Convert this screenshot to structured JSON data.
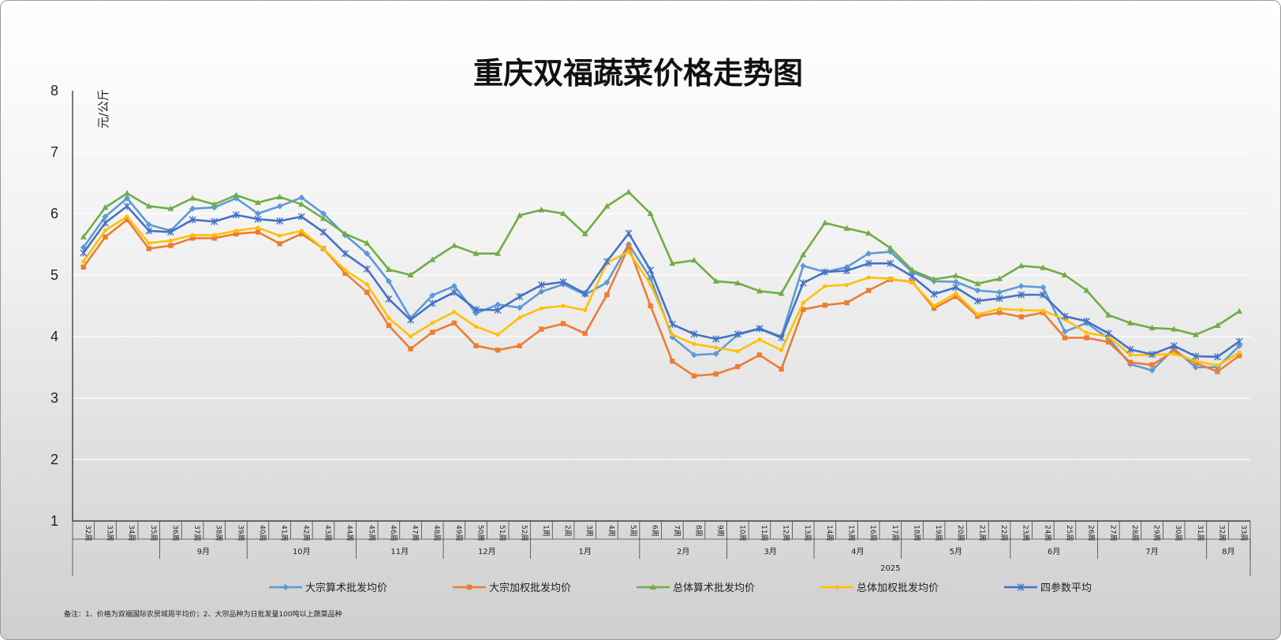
{
  "chart_data": {
    "type": "line",
    "title": "重庆双福蔬菜价格走势图",
    "ylabel": "元/公斤",
    "ylim": [
      1,
      8
    ],
    "yticks": [
      "1",
      "2",
      "3",
      "4",
      "5",
      "6",
      "7",
      "8"
    ],
    "grid": true,
    "legend_position": "bottom",
    "categories": [
      "32周",
      "33周",
      "34周",
      "35周",
      "36周",
      "37周",
      "38周",
      "39周",
      "40周",
      "41周",
      "42周",
      "43周",
      "44周",
      "45周",
      "46周",
      "47周",
      "48周",
      "49周",
      "50周",
      "51周",
      "52周",
      "1周",
      "2周",
      "3周",
      "4周",
      "5周",
      "6周",
      "7周",
      "8周",
      "9周",
      "10周",
      "11周",
      "12周",
      "13周",
      "14周",
      "15周",
      "16周",
      "17周",
      "18周",
      "19周",
      "20周",
      "21周",
      "22周",
      "23周",
      "24周",
      "25周",
      "26周",
      "27周",
      "28周",
      "29周",
      "30周",
      "31周",
      "32周",
      "33周"
    ],
    "month_groups": [
      {
        "label": "",
        "span": 4
      },
      {
        "label": "9月",
        "span": 4
      },
      {
        "label": "10月",
        "span": 5
      },
      {
        "label": "11月",
        "span": 4
      },
      {
        "label": "12月",
        "span": 4
      },
      {
        "label": "1月",
        "span": 5
      },
      {
        "label": "2月",
        "span": 4
      },
      {
        "label": "3月",
        "span": 4
      },
      {
        "label": "4月",
        "span": 4
      },
      {
        "label": "5月",
        "span": 5
      },
      {
        "label": "6月",
        "span": 4
      },
      {
        "label": "7月",
        "span": 5
      },
      {
        "label": "8月",
        "span": 2
      }
    ],
    "year_label": "2025",
    "series": [
      {
        "name": "大宗算术批发均价",
        "color": "#5B9BD5",
        "marker": "diamond",
        "values": [
          5.45,
          5.95,
          6.25,
          5.82,
          5.72,
          6.08,
          6.1,
          6.25,
          6.0,
          6.12,
          6.26,
          6.0,
          5.65,
          5.35,
          4.9,
          4.3,
          4.67,
          4.82,
          4.38,
          4.52,
          4.47,
          4.73,
          4.85,
          4.68,
          4.88,
          5.5,
          4.95,
          3.99,
          3.7,
          3.72,
          4.03,
          4.13,
          4.0,
          5.15,
          5.05,
          5.13,
          5.35,
          5.38,
          5.05,
          4.9,
          4.89,
          4.75,
          4.72,
          4.82,
          4.8,
          4.08,
          4.22,
          3.97,
          3.55,
          3.45,
          3.8,
          3.5,
          3.5,
          3.85
        ]
      },
      {
        "name": "大宗加权批发均价",
        "color": "#ED7D31",
        "marker": "square",
        "values": [
          5.13,
          5.62,
          5.9,
          5.43,
          5.48,
          5.6,
          5.6,
          5.67,
          5.7,
          5.51,
          5.67,
          5.43,
          5.03,
          4.72,
          4.18,
          3.8,
          4.07,
          4.22,
          3.85,
          3.78,
          3.85,
          4.12,
          4.21,
          4.05,
          4.68,
          5.46,
          4.5,
          3.6,
          3.36,
          3.39,
          3.51,
          3.7,
          3.47,
          4.44,
          4.51,
          4.55,
          4.75,
          4.93,
          4.89,
          4.46,
          4.65,
          4.33,
          4.39,
          4.32,
          4.39,
          3.98,
          3.98,
          3.91,
          3.58,
          3.54,
          3.76,
          3.57,
          3.43,
          3.69
        ]
      },
      {
        "name": "总体算术批发均价",
        "color": "#70AD47",
        "marker": "triangle",
        "values": [
          5.62,
          6.1,
          6.33,
          6.12,
          6.08,
          6.25,
          6.15,
          6.3,
          6.18,
          6.27,
          6.15,
          5.92,
          5.67,
          5.52,
          5.09,
          5.0,
          5.25,
          5.48,
          5.35,
          5.35,
          5.97,
          6.06,
          6.0,
          5.67,
          6.12,
          6.35,
          6.0,
          5.19,
          5.24,
          4.9,
          4.87,
          4.74,
          4.7,
          5.33,
          5.85,
          5.76,
          5.68,
          5.44,
          5.08,
          4.93,
          4.99,
          4.86,
          4.94,
          5.15,
          5.12,
          5.0,
          4.75,
          4.35,
          4.22,
          4.14,
          4.12,
          4.03,
          4.18,
          4.41
        ]
      },
      {
        "name": "总体加权批发均价",
        "color": "#FFC000",
        "marker": "circle",
        "values": [
          5.22,
          5.73,
          5.95,
          5.52,
          5.56,
          5.65,
          5.65,
          5.72,
          5.77,
          5.64,
          5.72,
          5.43,
          5.08,
          4.85,
          4.3,
          4.0,
          4.22,
          4.4,
          4.16,
          4.03,
          4.31,
          4.46,
          4.5,
          4.43,
          5.2,
          5.38,
          4.85,
          4.03,
          3.88,
          3.82,
          3.76,
          3.95,
          3.78,
          4.55,
          4.82,
          4.84,
          4.96,
          4.94,
          4.88,
          4.5,
          4.7,
          4.36,
          4.45,
          4.43,
          4.42,
          4.28,
          4.06,
          4.0,
          3.7,
          3.7,
          3.72,
          3.6,
          3.53,
          3.74
        ]
      },
      {
        "name": "四参数平均",
        "color": "#4472C4",
        "marker": "star",
        "values": [
          5.36,
          5.85,
          6.12,
          5.72,
          5.7,
          5.9,
          5.87,
          5.98,
          5.91,
          5.88,
          5.95,
          5.7,
          5.35,
          5.1,
          4.61,
          4.27,
          4.54,
          4.72,
          4.44,
          4.43,
          4.65,
          4.84,
          4.89,
          4.7,
          5.22,
          5.68,
          5.08,
          4.2,
          4.04,
          3.96,
          4.04,
          4.13,
          3.98,
          4.87,
          5.05,
          5.07,
          5.19,
          5.19,
          4.98,
          4.69,
          4.8,
          4.58,
          4.62,
          4.68,
          4.68,
          4.33,
          4.25,
          4.05,
          3.79,
          3.71,
          3.85,
          3.68,
          3.67,
          3.92
        ]
      }
    ],
    "note": "备注：1、价格为双福国际农贸城周平均价；2、大宗品种为日批发量100吨以上蔬菜品种"
  }
}
